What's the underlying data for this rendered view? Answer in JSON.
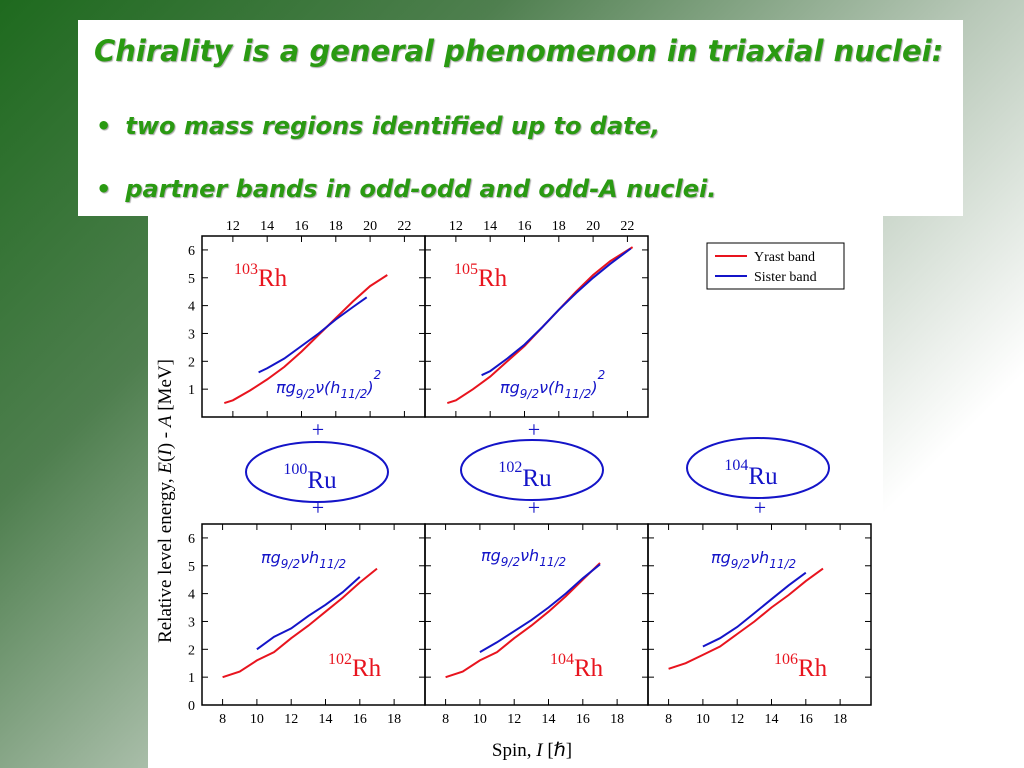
{
  "slide": {
    "title": "Chirality is a general phenomenon in triaxial nuclei:",
    "bullets": [
      "two mass regions identified up to date,",
      "partner bands in odd-odd and odd-A nuclei."
    ],
    "colors": {
      "title_green": "#2a9a12",
      "yrast_red": "#e8141e",
      "sister_blue": "#1414c8"
    }
  },
  "figure": {
    "ylabel": "Relative level energy, E(I) - A [MeV]",
    "xlabel": "Spin, I [ℏ]",
    "legend": {
      "yrast": "Yrast band",
      "sister": "Sister band"
    },
    "plus_sign": "+",
    "cores": [
      {
        "mass": "100",
        "symbol": "Ru"
      },
      {
        "mass": "102",
        "symbol": "Ru"
      },
      {
        "mass": "104",
        "symbol": "Ru"
      }
    ]
  },
  "chart_data": [
    {
      "type": "line",
      "nucleus_mass": "103",
      "nucleus_symbol": "Rh",
      "configuration": "πg9/2ν(h11/2)2",
      "x_ticks_top": [
        12,
        14,
        16,
        18,
        20,
        22
      ],
      "ylim": [
        0,
        6.5
      ],
      "y_ticks": [
        1,
        2,
        3,
        4,
        5,
        6
      ],
      "series": [
        {
          "name": "Yrast band",
          "color": "#e8141e",
          "points": [
            [
              11.5,
              0.5
            ],
            [
              12,
              0.6
            ],
            [
              13,
              0.95
            ],
            [
              14,
              1.35
            ],
            [
              15,
              1.8
            ],
            [
              16,
              2.35
            ],
            [
              17,
              2.95
            ],
            [
              18,
              3.55
            ],
            [
              19,
              4.15
            ],
            [
              20,
              4.7
            ],
            [
              21,
              5.1
            ]
          ]
        },
        {
          "name": "Sister band",
          "color": "#1414c8",
          "points": [
            [
              13.5,
              1.6
            ],
            [
              14,
              1.75
            ],
            [
              15,
              2.1
            ],
            [
              16,
              2.55
            ],
            [
              17,
              3.0
            ],
            [
              18,
              3.5
            ],
            [
              19,
              3.95
            ],
            [
              19.8,
              4.3
            ]
          ]
        }
      ]
    },
    {
      "type": "line",
      "nucleus_mass": "105",
      "nucleus_symbol": "Rh",
      "configuration": "πg9/2ν(h11/2)2",
      "x_ticks_top": [
        12,
        14,
        16,
        18,
        20,
        22
      ],
      "ylim": [
        0,
        6.5
      ],
      "y_ticks": [
        1,
        2,
        3,
        4,
        5,
        6
      ],
      "series": [
        {
          "name": "Yrast band",
          "color": "#e8141e",
          "points": [
            [
              11.5,
              0.5
            ],
            [
              12,
              0.6
            ],
            [
              13,
              1.0
            ],
            [
              14,
              1.45
            ],
            [
              15,
              2.0
            ],
            [
              16,
              2.55
            ],
            [
              17,
              3.2
            ],
            [
              18,
              3.85
            ],
            [
              19,
              4.5
            ],
            [
              20,
              5.1
            ],
            [
              21,
              5.6
            ],
            [
              22.3,
              6.1
            ]
          ]
        },
        {
          "name": "Sister band",
          "color": "#1414c8",
          "points": [
            [
              13.5,
              1.5
            ],
            [
              14,
              1.65
            ],
            [
              15,
              2.1
            ],
            [
              16,
              2.6
            ],
            [
              17,
              3.2
            ],
            [
              18,
              3.85
            ],
            [
              19,
              4.45
            ],
            [
              20,
              5.0
            ],
            [
              21,
              5.5
            ],
            [
              22.2,
              6.05
            ]
          ]
        }
      ]
    },
    {
      "type": "line",
      "nucleus_mass": "102",
      "nucleus_symbol": "Rh",
      "configuration": "πg9/2νh11/2",
      "x_ticks_bottom": [
        8,
        10,
        12,
        14,
        16,
        18
      ],
      "ylim": [
        0,
        6.5
      ],
      "y_ticks": [
        0,
        1,
        2,
        3,
        4,
        5,
        6
      ],
      "series": [
        {
          "name": "Yrast band",
          "color": "#e8141e",
          "points": [
            [
              8,
              1.0
            ],
            [
              9,
              1.2
            ],
            [
              10,
              1.6
            ],
            [
              11,
              1.9
            ],
            [
              12,
              2.4
            ],
            [
              13,
              2.85
            ],
            [
              14,
              3.35
            ],
            [
              15,
              3.85
            ],
            [
              16,
              4.4
            ],
            [
              17,
              4.9
            ]
          ]
        },
        {
          "name": "Sister band",
          "color": "#1414c8",
          "points": [
            [
              10,
              2.0
            ],
            [
              11,
              2.45
            ],
            [
              12,
              2.75
            ],
            [
              13,
              3.2
            ],
            [
              14,
              3.6
            ],
            [
              15,
              4.05
            ],
            [
              16,
              4.6
            ]
          ]
        }
      ]
    },
    {
      "type": "line",
      "nucleus_mass": "104",
      "nucleus_symbol": "Rh",
      "configuration": "πg9/2νh11/2",
      "x_ticks_bottom": [
        8,
        10,
        12,
        14,
        16,
        18
      ],
      "ylim": [
        0,
        6.5
      ],
      "y_ticks": [
        0,
        1,
        2,
        3,
        4,
        5,
        6
      ],
      "series": [
        {
          "name": "Yrast band",
          "color": "#e8141e",
          "points": [
            [
              8,
              1.0
            ],
            [
              9,
              1.2
            ],
            [
              10,
              1.6
            ],
            [
              11,
              1.9
            ],
            [
              12,
              2.4
            ],
            [
              13,
              2.85
            ],
            [
              14,
              3.35
            ],
            [
              15,
              3.9
            ],
            [
              16,
              4.5
            ],
            [
              17,
              5.1
            ]
          ]
        },
        {
          "name": "Sister band",
          "color": "#1414c8",
          "points": [
            [
              10,
              1.9
            ],
            [
              11,
              2.25
            ],
            [
              12,
              2.65
            ],
            [
              13,
              3.05
            ],
            [
              14,
              3.5
            ],
            [
              15,
              4.0
            ],
            [
              16,
              4.55
            ],
            [
              17,
              5.05
            ]
          ]
        }
      ]
    },
    {
      "type": "line",
      "nucleus_mass": "106",
      "nucleus_symbol": "Rh",
      "configuration": "πg9/2νh11/2",
      "x_ticks_bottom": [
        8,
        10,
        12,
        14,
        16,
        18
      ],
      "ylim": [
        0,
        6.5
      ],
      "y_ticks": [
        0,
        1,
        2,
        3,
        4,
        5,
        6
      ],
      "series": [
        {
          "name": "Yrast band",
          "color": "#e8141e",
          "points": [
            [
              8,
              1.3
            ],
            [
              9,
              1.5
            ],
            [
              10,
              1.8
            ],
            [
              11,
              2.1
            ],
            [
              12,
              2.55
            ],
            [
              13,
              3.0
            ],
            [
              14,
              3.5
            ],
            [
              15,
              3.95
            ],
            [
              16,
              4.45
            ],
            [
              17,
              4.9
            ]
          ]
        },
        {
          "name": "Sister band",
          "color": "#1414c8",
          "points": [
            [
              10,
              2.1
            ],
            [
              11,
              2.4
            ],
            [
              12,
              2.8
            ],
            [
              13,
              3.3
            ],
            [
              14,
              3.8
            ],
            [
              15,
              4.3
            ],
            [
              16,
              4.75
            ]
          ]
        }
      ]
    }
  ]
}
